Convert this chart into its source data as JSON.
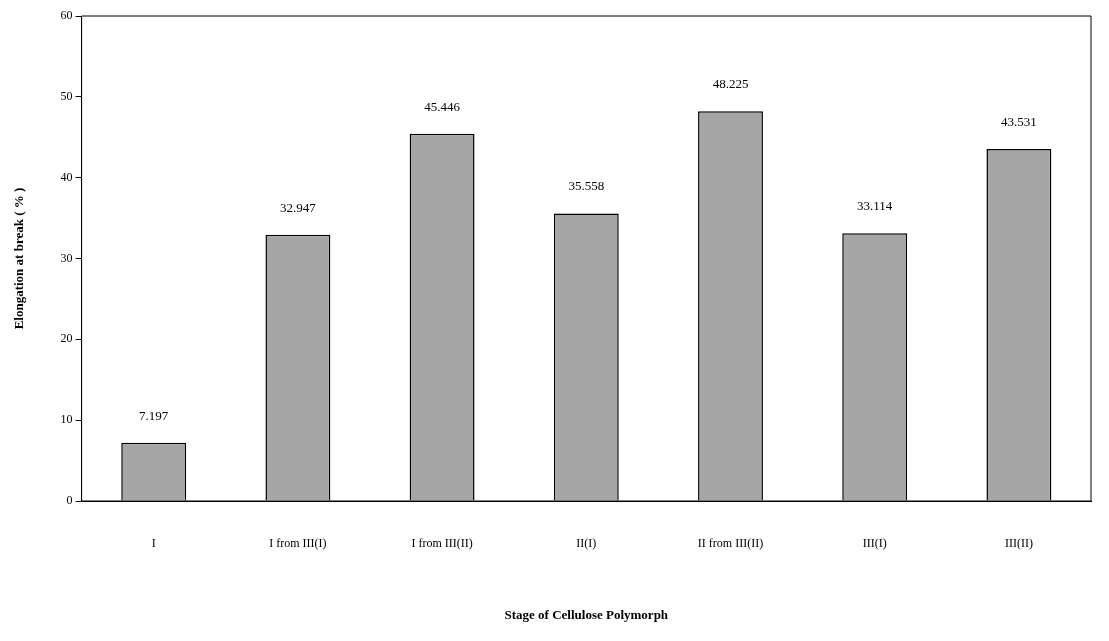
{
  "chart_data": {
    "type": "bar",
    "xlabel": "Stage of Cellulose Polymorph",
    "ylabel": "Elongation at break ( % )",
    "categories": [
      "I",
      "I from III(I)",
      "I from III(II)",
      "II(I)",
      "II from III(II)",
      "III(I)",
      "III(II)"
    ],
    "values": [
      7.197,
      32.947,
      45.446,
      35.558,
      48.225,
      33.114,
      43.531
    ],
    "color": "#a6a6a6",
    "ylim": [
      0,
      60
    ],
    "yticks": [
      0,
      10,
      20,
      30,
      40,
      50,
      60
    ],
    "grid": false,
    "legend": false,
    "data_labels": true
  }
}
